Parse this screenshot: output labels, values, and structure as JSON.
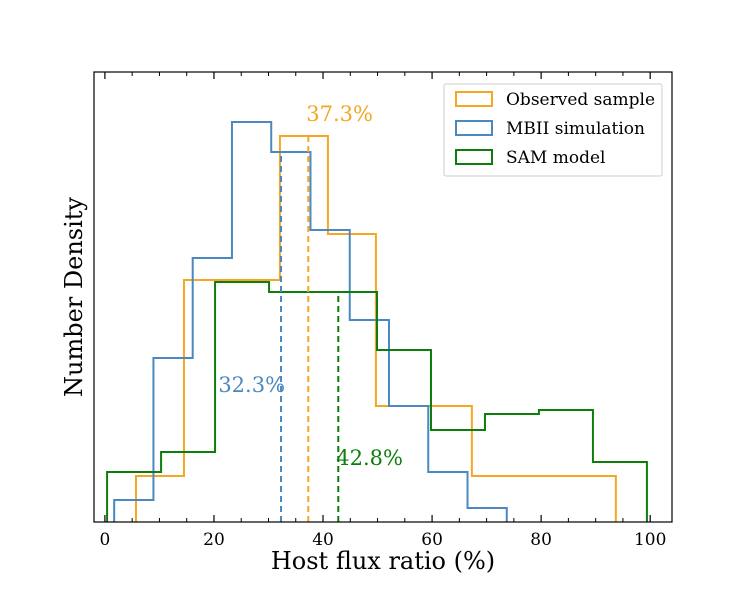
{
  "chart_data": {
    "type": "histogram",
    "xlabel": "Host flux ratio (%)",
    "ylabel": "Number Density",
    "xlim": [
      -2,
      104
    ],
    "ylim": [
      0,
      1.0
    ],
    "x_ticks": [
      0,
      20,
      40,
      60,
      80,
      100
    ],
    "x_tick_labels": [
      "0",
      "20",
      "40",
      "60",
      "80",
      "100"
    ],
    "y_tick_labels_shown": false,
    "legend_position": "upper right",
    "series": [
      {
        "name": "Observed sample",
        "color": "#f5a623",
        "edges": [
          5.7,
          14.5,
          23.3,
          32.1,
          40.9,
          49.7,
          58.5,
          67.3,
          76.1,
          84.9,
          93.7
        ],
        "values": [
          0.115,
          0.605,
          0.605,
          0.965,
          0.72,
          0.29,
          0.29,
          0.115,
          0.115,
          0.115
        ]
      },
      {
        "name": "MBII simulation",
        "color": "#4a88bf",
        "edges": [
          1.7,
          8.9,
          16.1,
          23.3,
          30.5,
          37.7,
          44.9,
          52.1,
          59.3,
          66.5,
          73.7
        ],
        "values": [
          0.055,
          0.41,
          0.66,
          1.0,
          0.925,
          0.73,
          0.505,
          0.29,
          0.125,
          0.035
        ]
      },
      {
        "name": "SAM model",
        "color": "#0d7d0d",
        "edges": [
          0.4,
          10.3,
          20.2,
          30.1,
          40.0,
          49.9,
          59.8,
          69.7,
          79.6,
          89.5,
          99.4
        ],
        "values": [
          0.125,
          0.175,
          0.6,
          0.575,
          0.575,
          0.43,
          0.23,
          0.27,
          0.28,
          0.15
        ]
      }
    ],
    "medians": [
      {
        "series": "Observed sample",
        "value": 37.3,
        "label": "37.3%",
        "color": "#f5a623"
      },
      {
        "series": "MBII simulation",
        "value": 32.3,
        "label": "32.3%",
        "color": "#4a88bf"
      },
      {
        "series": "SAM model",
        "value": 42.8,
        "label": "42.8%",
        "color": "#0d7d0d"
      }
    ]
  }
}
